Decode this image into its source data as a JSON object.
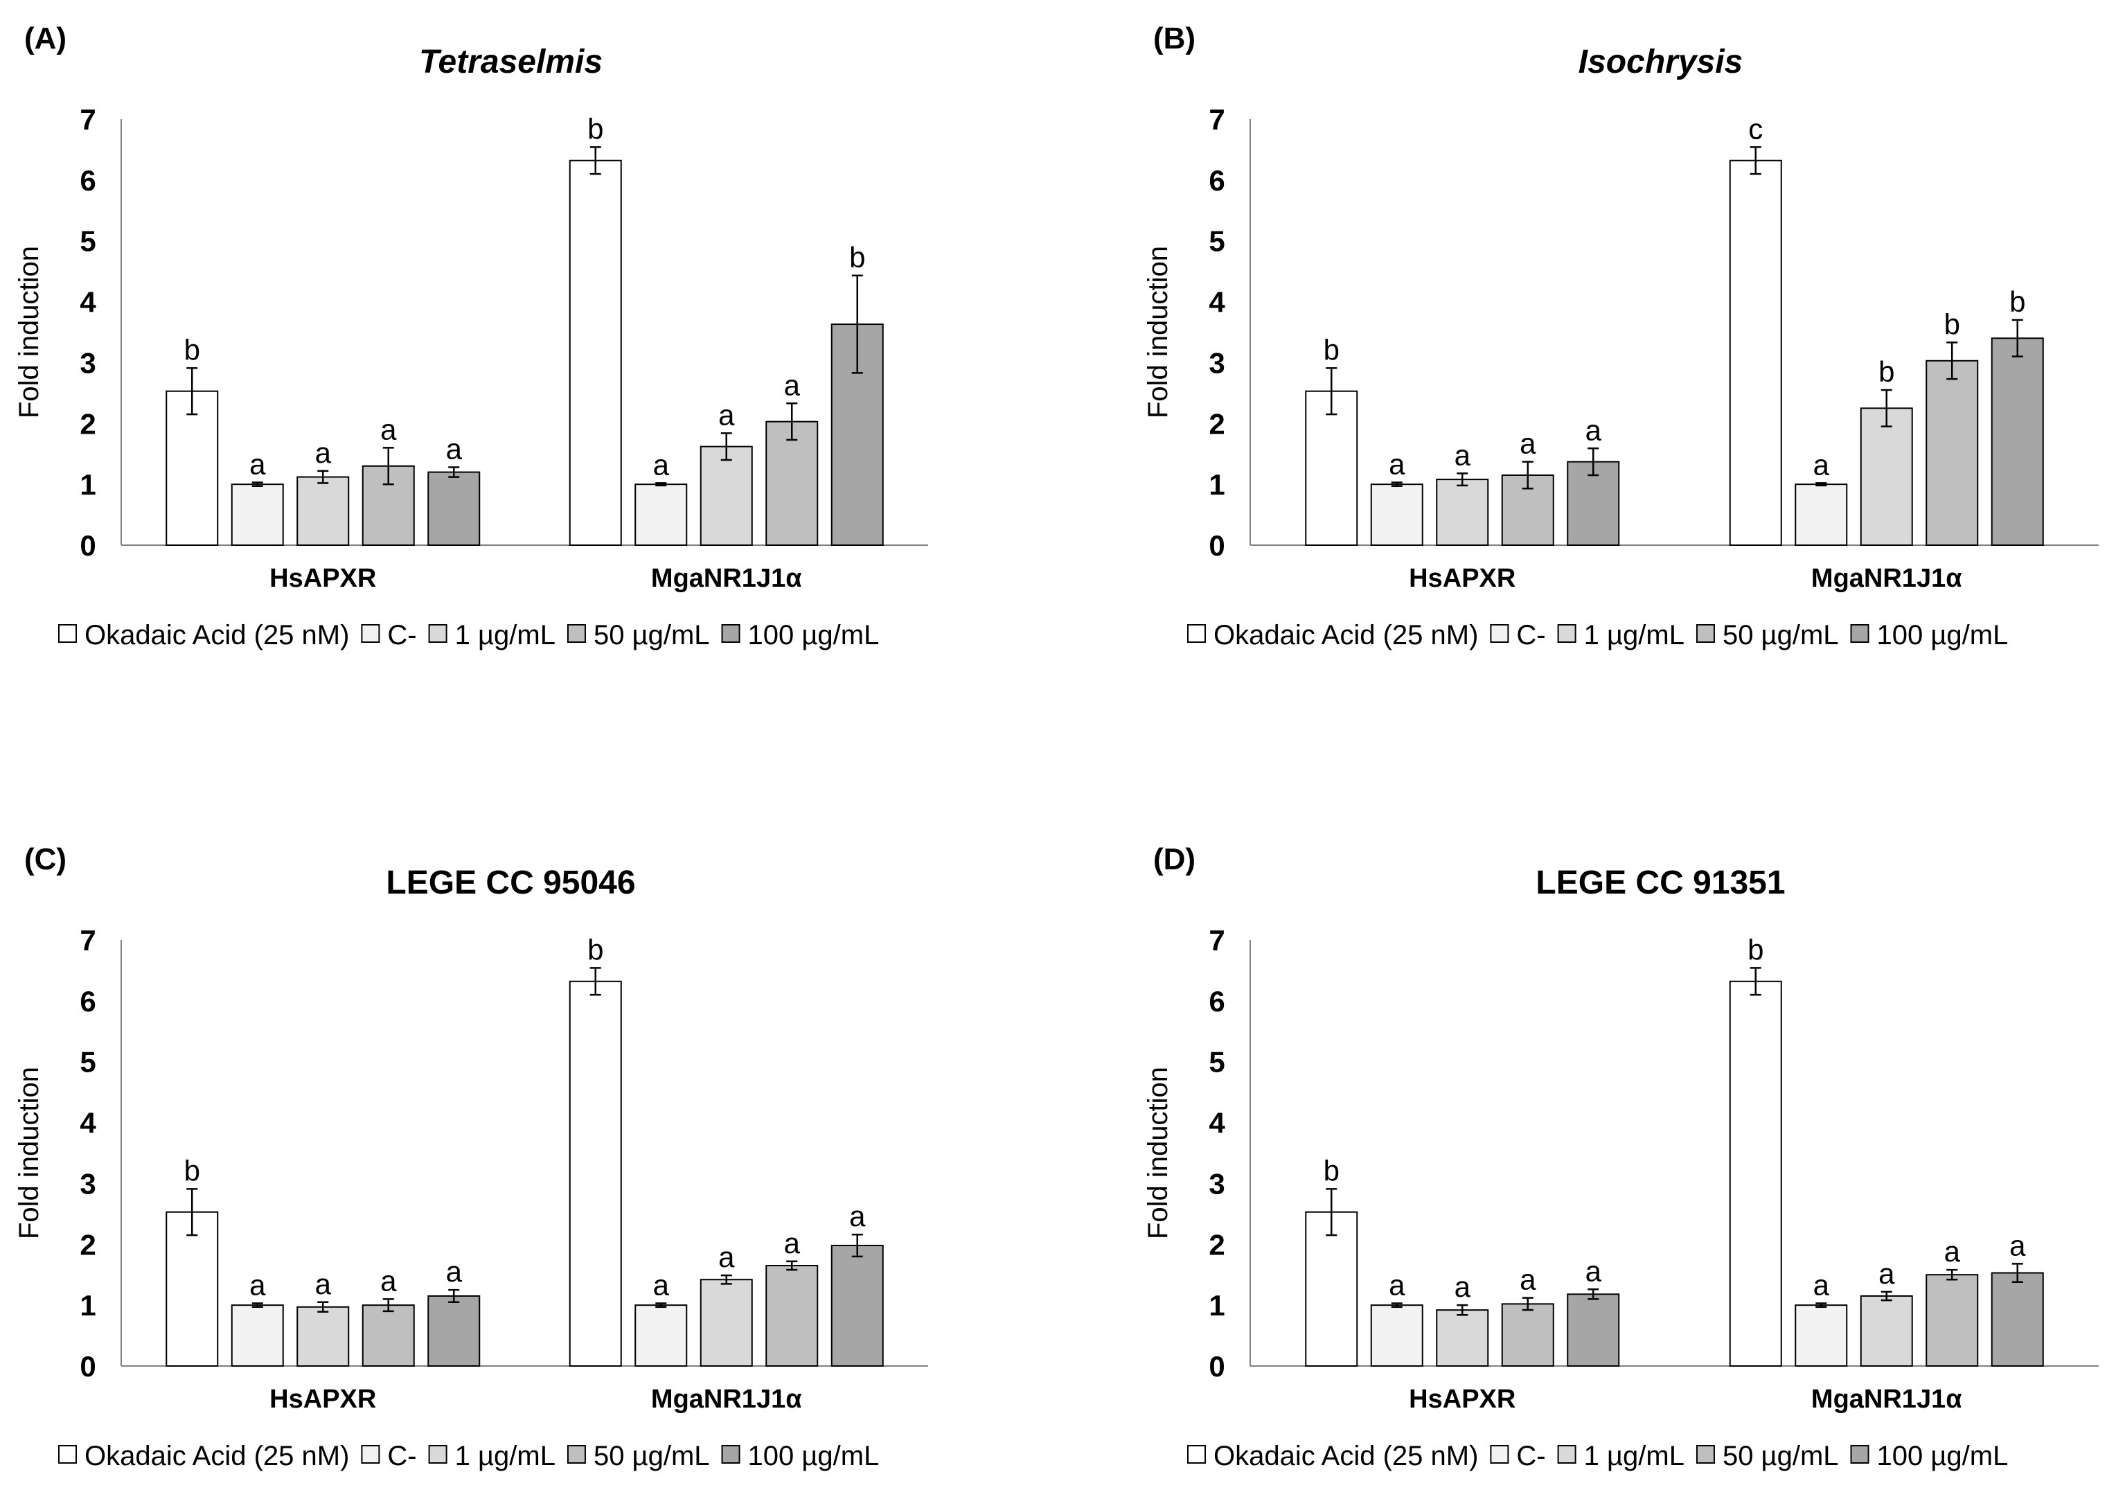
{
  "chart_data": [
    {
      "type": "bar",
      "panel_label": "(A)",
      "title": "Tetraselmis",
      "title_italic": true,
      "ylabel": "Fold induction",
      "xlabel": "",
      "ylim": [
        0,
        7
      ],
      "yticks": [
        "0",
        "1",
        "2",
        "3",
        "4",
        "5",
        "6",
        "7"
      ],
      "grid": false,
      "legend_position": "bottom",
      "categories": [
        "HsAPXR",
        "MgaNR1J1α"
      ],
      "series": [
        {
          "name": "Okadaic Acid (25 nM)",
          "color": "#ffffff",
          "values": [
            2.53,
            6.32
          ],
          "errors": [
            0.38,
            0.22
          ],
          "labels": [
            "b",
            "b"
          ]
        },
        {
          "name": "C-",
          "color": "#f2f2f2",
          "values": [
            1.0,
            1.0
          ],
          "errors": [
            0.03,
            0.02
          ],
          "labels": [
            "a",
            "a"
          ]
        },
        {
          "name": "1 µg/mL",
          "color": "#d9d9d9",
          "values": [
            1.12,
            1.62
          ],
          "errors": [
            0.1,
            0.22
          ],
          "labels": [
            "a",
            "a"
          ]
        },
        {
          "name": "50 µg/mL",
          "color": "#bfbfbf",
          "values": [
            1.3,
            2.03
          ],
          "errors": [
            0.3,
            0.3
          ],
          "labels": [
            "a",
            "a"
          ]
        },
        {
          "name": "100 µg/mL",
          "color": "#a6a6a6",
          "values": [
            1.2,
            3.63
          ],
          "errors": [
            0.08,
            0.8
          ],
          "labels": [
            "a",
            "b"
          ]
        }
      ]
    },
    {
      "type": "bar",
      "panel_label": "(B)",
      "title": "Isochrysis",
      "title_italic": true,
      "ylabel": "Fold induction",
      "xlabel": "",
      "ylim": [
        0,
        7
      ],
      "yticks": [
        "0",
        "1",
        "2",
        "3",
        "4",
        "5",
        "6",
        "7"
      ],
      "grid": false,
      "legend_position": "bottom",
      "categories": [
        "HsAPXR",
        "MgaNR1J1α"
      ],
      "series": [
        {
          "name": "Okadaic Acid (25 nM)",
          "color": "#ffffff",
          "values": [
            2.53,
            6.32
          ],
          "errors": [
            0.38,
            0.22
          ],
          "labels": [
            "b",
            "c"
          ]
        },
        {
          "name": "C-",
          "color": "#f2f2f2",
          "values": [
            1.0,
            1.0
          ],
          "errors": [
            0.03,
            0.02
          ],
          "labels": [
            "a",
            "a"
          ]
        },
        {
          "name": "1 µg/mL",
          "color": "#d9d9d9",
          "values": [
            1.08,
            2.25
          ],
          "errors": [
            0.1,
            0.3
          ],
          "labels": [
            "a",
            "b"
          ]
        },
        {
          "name": "50 µg/mL",
          "color": "#bfbfbf",
          "values": [
            1.15,
            3.03
          ],
          "errors": [
            0.22,
            0.3
          ],
          "labels": [
            "a",
            "b"
          ]
        },
        {
          "name": "100 µg/mL",
          "color": "#a6a6a6",
          "values": [
            1.37,
            3.4
          ],
          "errors": [
            0.22,
            0.3
          ],
          "labels": [
            "a",
            "b"
          ]
        }
      ]
    },
    {
      "type": "bar",
      "panel_label": "(C)",
      "title": "LEGE CC 95046",
      "title_italic": false,
      "ylabel": "Fold induction",
      "xlabel": "",
      "ylim": [
        0,
        7
      ],
      "yticks": [
        "0",
        "1",
        "2",
        "3",
        "4",
        "5",
        "6",
        "7"
      ],
      "grid": false,
      "legend_position": "bottom",
      "categories": [
        "HsAPXR",
        "MgaNR1J1α"
      ],
      "series": [
        {
          "name": "Okadaic Acid (25 nM)",
          "color": "#ffffff",
          "values": [
            2.53,
            6.32
          ],
          "errors": [
            0.38,
            0.22
          ],
          "labels": [
            "b",
            "b"
          ]
        },
        {
          "name": "C-",
          "color": "#f2f2f2",
          "values": [
            1.0,
            1.0
          ],
          "errors": [
            0.03,
            0.03
          ],
          "labels": [
            "a",
            "a"
          ]
        },
        {
          "name": "1 µg/mL",
          "color": "#d9d9d9",
          "values": [
            0.97,
            1.42
          ],
          "errors": [
            0.08,
            0.07
          ],
          "labels": [
            "a",
            "a"
          ]
        },
        {
          "name": "50 µg/mL",
          "color": "#bfbfbf",
          "values": [
            1.0,
            1.65
          ],
          "errors": [
            0.1,
            0.07
          ],
          "labels": [
            "a",
            "a"
          ]
        },
        {
          "name": "100 µg/mL",
          "color": "#a6a6a6",
          "values": [
            1.15,
            1.98
          ],
          "errors": [
            0.1,
            0.18
          ],
          "labels": [
            "a",
            "a"
          ]
        }
      ]
    },
    {
      "type": "bar",
      "panel_label": "(D)",
      "title": "LEGE CC 91351",
      "title_italic": false,
      "ylabel": "Fold induction",
      "xlabel": "",
      "ylim": [
        0,
        7
      ],
      "yticks": [
        "0",
        "1",
        "2",
        "3",
        "4",
        "5",
        "6",
        "7"
      ],
      "grid": false,
      "legend_position": "bottom",
      "categories": [
        "HsAPXR",
        "MgaNR1J1α"
      ],
      "series": [
        {
          "name": "Okadaic Acid (25 nM)",
          "color": "#ffffff",
          "values": [
            2.53,
            6.32
          ],
          "errors": [
            0.38,
            0.22
          ],
          "labels": [
            "b",
            "b"
          ]
        },
        {
          "name": "C-",
          "color": "#f2f2f2",
          "values": [
            1.0,
            1.0
          ],
          "errors": [
            0.03,
            0.03
          ],
          "labels": [
            "a",
            "a"
          ]
        },
        {
          "name": "1 µg/mL",
          "color": "#d9d9d9",
          "values": [
            0.92,
            1.15
          ],
          "errors": [
            0.08,
            0.07
          ],
          "labels": [
            "a",
            "a"
          ]
        },
        {
          "name": "50 µg/mL",
          "color": "#bfbfbf",
          "values": [
            1.02,
            1.5
          ],
          "errors": [
            0.1,
            0.08
          ],
          "labels": [
            "a",
            "a"
          ]
        },
        {
          "name": "100 µg/mL",
          "color": "#a6a6a6",
          "values": [
            1.18,
            1.53
          ],
          "errors": [
            0.08,
            0.15
          ],
          "labels": [
            "a",
            "a"
          ]
        }
      ]
    }
  ]
}
